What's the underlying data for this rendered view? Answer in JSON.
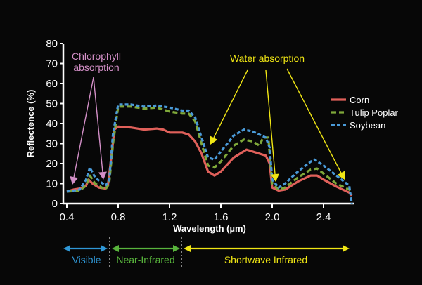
{
  "chart_data": {
    "type": "line",
    "title": "",
    "xlabel": "Wavelength (µm)",
    "ylabel": "Reflectence (%)",
    "xlim": [
      0.37,
      2.63
    ],
    "ylim": [
      0,
      80
    ],
    "xticks": [
      "0.4",
      "0.8",
      "1.2",
      "1.6",
      "2.0",
      "2.4"
    ],
    "yticks": [
      "0",
      "10",
      "20",
      "30",
      "40",
      "50",
      "60",
      "70",
      "80"
    ],
    "grid": false,
    "legend_position": "right",
    "background": "#070707",
    "series": [
      {
        "name": "Corn",
        "color": "#e0605a",
        "style": "solid",
        "x": [
          0.4,
          0.45,
          0.5,
          0.55,
          0.57,
          0.6,
          0.65,
          0.7,
          0.72,
          0.75,
          0.77,
          0.8,
          0.9,
          1.0,
          1.1,
          1.15,
          1.2,
          1.3,
          1.35,
          1.4,
          1.45,
          1.5,
          1.55,
          1.6,
          1.7,
          1.8,
          1.9,
          1.95,
          1.98,
          2.0,
          2.05,
          2.1,
          2.2,
          2.3,
          2.35,
          2.4,
          2.5,
          2.6,
          2.62
        ],
        "y": [
          6,
          7,
          7.5,
          9,
          12,
          10,
          8,
          7.5,
          9,
          25,
          37,
          38.5,
          38,
          37,
          37.5,
          37,
          35.5,
          35.5,
          34.5,
          31,
          25,
          16,
          14,
          16,
          23,
          27,
          25,
          24,
          20,
          8,
          6.5,
          7,
          11,
          14,
          14,
          12,
          8.5,
          5.5,
          4
        ]
      },
      {
        "name": "Tulip Poplar",
        "color": "#7fa83a",
        "style": "dashed",
        "x": [
          0.4,
          0.5,
          0.55,
          0.58,
          0.62,
          0.7,
          0.73,
          0.76,
          0.8,
          0.9,
          1.0,
          1.1,
          1.2,
          1.3,
          1.35,
          1.4,
          1.45,
          1.5,
          1.55,
          1.6,
          1.7,
          1.78,
          1.85,
          1.9,
          1.93,
          1.97,
          2.0,
          2.05,
          2.1,
          2.2,
          2.3,
          2.35,
          2.4,
          2.5,
          2.6,
          2.62
        ],
        "y": [
          6,
          6.5,
          9,
          14,
          10,
          7,
          10,
          30,
          48.5,
          48.5,
          47.5,
          48,
          46,
          45,
          45,
          41,
          30,
          19,
          18,
          21,
          29,
          32,
          31,
          29,
          33,
          33,
          10,
          7,
          8,
          13,
          17,
          17.5,
          15,
          10,
          7,
          6
        ]
      },
      {
        "name": "Soybean",
        "color": "#4a9ad8",
        "style": "dotted",
        "x": [
          0.4,
          0.5,
          0.55,
          0.58,
          0.62,
          0.7,
          0.73,
          0.76,
          0.8,
          0.9,
          1.0,
          1.1,
          1.2,
          1.3,
          1.35,
          1.4,
          1.45,
          1.5,
          1.55,
          1.6,
          1.7,
          1.78,
          1.85,
          1.95,
          1.98,
          2.0,
          2.05,
          2.1,
          2.2,
          2.3,
          2.33,
          2.4,
          2.5,
          2.6,
          2.62
        ],
        "y": [
          6,
          7,
          12,
          18,
          13,
          9,
          11,
          35,
          49.5,
          49.5,
          48.5,
          49,
          48,
          46.5,
          46.5,
          43,
          33,
          23,
          22,
          26,
          34,
          37,
          36,
          33,
          28,
          12,
          8,
          10,
          16,
          21,
          22,
          19,
          14,
          9,
          0
        ]
      }
    ],
    "annotations": [
      {
        "text_lines": [
          "Chlorophyll",
          "absorption"
        ],
        "color": "#d38fc7"
      },
      {
        "text": "Water absorption",
        "color": "#f0e614"
      }
    ],
    "regions": [
      {
        "label": "Visible",
        "color": "#2f97d6"
      },
      {
        "label": "Near-Infrared",
        "color": "#58b43c"
      },
      {
        "label": "Shortwave Infrared",
        "color": "#f0e614"
      }
    ]
  }
}
